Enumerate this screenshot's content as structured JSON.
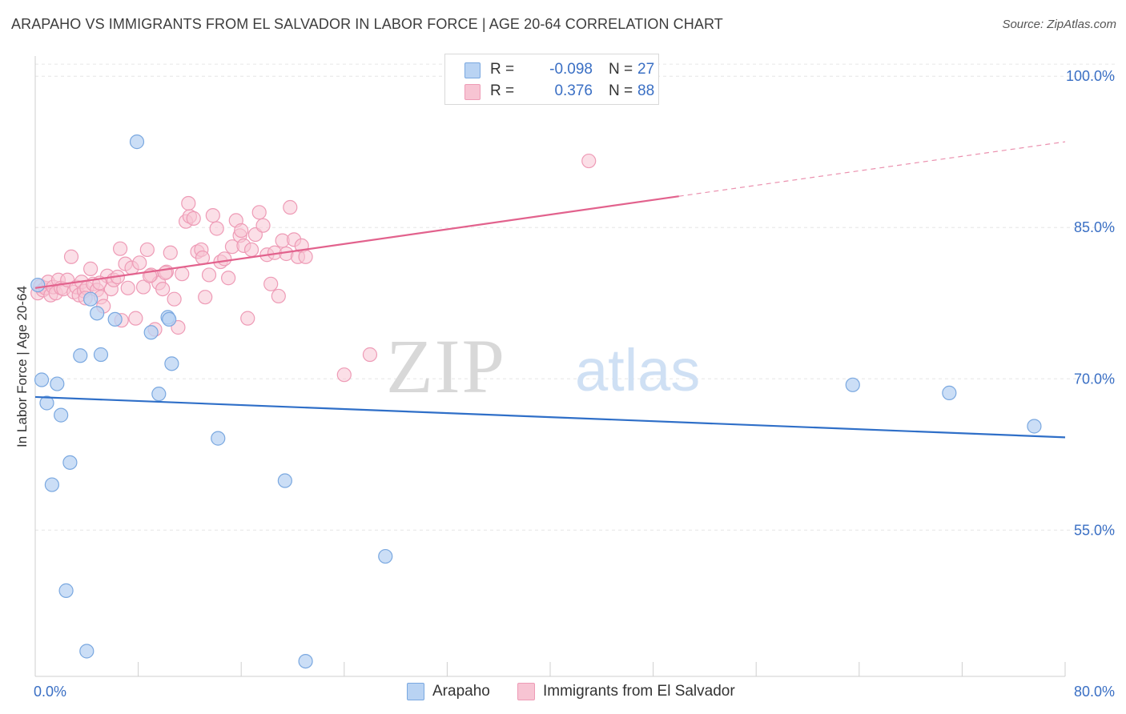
{
  "header": {
    "title": "ARAPAHO VS IMMIGRANTS FROM EL SALVADOR IN LABOR FORCE | AGE 20-64 CORRELATION CHART",
    "source": "Source: ZipAtlas.com"
  },
  "watermark": {
    "zip": "ZIP",
    "atlas": "atlas"
  },
  "legend": {
    "series": [
      {
        "r_label": "R =",
        "r_value": "-0.098",
        "n_label": "N =",
        "n_value": "27"
      },
      {
        "r_label": "R =",
        "r_value": "0.376",
        "n_label": "N =",
        "n_value": "88"
      }
    ]
  },
  "bottom_legend": {
    "arapaho": "Arapaho",
    "elsalvador": "Immigrants from El Salvador"
  },
  "colors": {
    "arapaho_fill": "#b9d3f3",
    "arapaho_stroke": "#7aa8e0",
    "arapaho_line": "#2f6fc8",
    "elsalvador_fill": "#f7c4d3",
    "elsalvador_stroke": "#ee9bb6",
    "elsalvador_line": "#e2628d",
    "axis_label": "#3a6fc4",
    "grid": "#e6e6e6"
  },
  "chart_data": {
    "type": "scatter",
    "title": "ARAPAHO VS IMMIGRANTS FROM EL SALVADOR IN LABOR FORCE | AGE 20-64 CORRELATION CHART",
    "xlabel": "",
    "ylabel": "In Labor Force | Age 20-64",
    "xlim": [
      0,
      80
    ],
    "ylim": [
      40.5,
      102
    ],
    "x_tick_labels": [
      "0.0%",
      "80.0%"
    ],
    "y_ticks": [
      55,
      70,
      85,
      100
    ],
    "y_tick_labels": [
      "55.0%",
      "70.0%",
      "85.0%",
      "100.0%"
    ],
    "grid": true,
    "series": [
      {
        "name": "Arapaho",
        "points": [
          [
            0.5,
            69.9
          ],
          [
            0.9,
            67.6
          ],
          [
            1.3,
            59.5
          ],
          [
            1.7,
            69.5
          ],
          [
            2.0,
            66.4
          ],
          [
            2.4,
            49.0
          ],
          [
            2.7,
            61.7
          ],
          [
            3.5,
            72.3
          ],
          [
            4.0,
            43.0
          ],
          [
            4.3,
            77.9
          ],
          [
            4.8,
            76.5
          ],
          [
            5.1,
            72.4
          ],
          [
            6.2,
            75.9
          ],
          [
            7.9,
            93.5
          ],
          [
            9.0,
            74.6
          ],
          [
            9.6,
            68.5
          ],
          [
            10.3,
            76.1
          ],
          [
            10.4,
            75.9
          ],
          [
            10.6,
            71.5
          ],
          [
            14.2,
            64.1
          ],
          [
            19.4,
            59.9
          ],
          [
            21.0,
            42.0
          ],
          [
            27.2,
            52.4
          ],
          [
            63.5,
            69.4
          ],
          [
            71.0,
            68.6
          ],
          [
            77.6,
            65.3
          ],
          [
            0.2,
            79.3
          ]
        ]
      },
      {
        "name": "Immigrants from El Salvador",
        "points": [
          [
            0.2,
            78.5
          ],
          [
            0.4,
            79.2
          ],
          [
            0.6,
            78.8
          ],
          [
            0.8,
            79.0
          ],
          [
            1.0,
            79.6
          ],
          [
            1.2,
            78.3
          ],
          [
            1.4,
            79.1
          ],
          [
            1.6,
            78.5
          ],
          [
            1.8,
            79.8
          ],
          [
            2.0,
            79.0
          ],
          [
            2.2,
            78.9
          ],
          [
            2.5,
            79.8
          ],
          [
            2.8,
            82.1
          ],
          [
            3.0,
            78.6
          ],
          [
            3.2,
            79.1
          ],
          [
            3.4,
            78.3
          ],
          [
            3.6,
            79.6
          ],
          [
            3.8,
            78.7
          ],
          [
            4.0,
            79.0
          ],
          [
            4.3,
            80.9
          ],
          [
            4.5,
            79.4
          ],
          [
            4.8,
            78.8
          ],
          [
            5.1,
            78.1
          ],
          [
            5.3,
            77.2
          ],
          [
            5.6,
            80.2
          ],
          [
            5.9,
            78.9
          ],
          [
            6.1,
            79.8
          ],
          [
            6.4,
            80.1
          ],
          [
            6.7,
            75.8
          ],
          [
            7.0,
            81.4
          ],
          [
            7.2,
            79.0
          ],
          [
            7.5,
            81.0
          ],
          [
            7.8,
            76.0
          ],
          [
            8.1,
            81.5
          ],
          [
            8.4,
            79.1
          ],
          [
            8.7,
            82.8
          ],
          [
            9.0,
            80.3
          ],
          [
            9.3,
            74.9
          ],
          [
            9.6,
            79.5
          ],
          [
            9.9,
            78.9
          ],
          [
            10.2,
            80.6
          ],
          [
            10.5,
            82.5
          ],
          [
            10.8,
            77.9
          ],
          [
            11.1,
            75.1
          ],
          [
            11.4,
            80.4
          ],
          [
            11.7,
            85.6
          ],
          [
            12.0,
            86.1
          ],
          [
            12.3,
            85.9
          ],
          [
            12.6,
            82.6
          ],
          [
            12.9,
            82.8
          ],
          [
            13.2,
            78.1
          ],
          [
            13.5,
            80.3
          ],
          [
            13.8,
            86.2
          ],
          [
            14.1,
            84.9
          ],
          [
            14.4,
            81.6
          ],
          [
            14.7,
            81.9
          ],
          [
            15.0,
            80.0
          ],
          [
            15.3,
            83.1
          ],
          [
            15.6,
            85.7
          ],
          [
            15.9,
            84.2
          ],
          [
            16.2,
            83.2
          ],
          [
            16.5,
            76.0
          ],
          [
            16.8,
            82.8
          ],
          [
            17.1,
            84.3
          ],
          [
            17.4,
            86.5
          ],
          [
            17.7,
            85.2
          ],
          [
            18.0,
            82.3
          ],
          [
            18.3,
            79.4
          ],
          [
            18.6,
            82.5
          ],
          [
            18.9,
            78.2
          ],
          [
            19.2,
            83.7
          ],
          [
            19.5,
            82.4
          ],
          [
            19.8,
            87.0
          ],
          [
            20.1,
            83.8
          ],
          [
            20.4,
            82.1
          ],
          [
            20.7,
            83.2
          ],
          [
            21.0,
            82.1
          ],
          [
            24.0,
            70.4
          ],
          [
            26.0,
            72.4
          ],
          [
            43.0,
            91.6
          ],
          [
            5.0,
            79.5
          ],
          [
            3.9,
            78.0
          ],
          [
            6.6,
            82.9
          ],
          [
            8.9,
            80.2
          ],
          [
            10.1,
            80.5
          ],
          [
            11.9,
            87.4
          ],
          [
            13.0,
            82.0
          ],
          [
            16.0,
            84.7
          ]
        ]
      }
    ],
    "trend_lines": [
      {
        "name": "Arapaho",
        "x": [
          0,
          80
        ],
        "y": [
          68.2,
          64.2
        ]
      },
      {
        "name": "Immigrants from El Salvador",
        "x": [
          0,
          50
        ],
        "y": [
          79.0,
          88.1
        ],
        "dashed_extension_to": [
          80,
          93.5
        ]
      }
    ]
  }
}
